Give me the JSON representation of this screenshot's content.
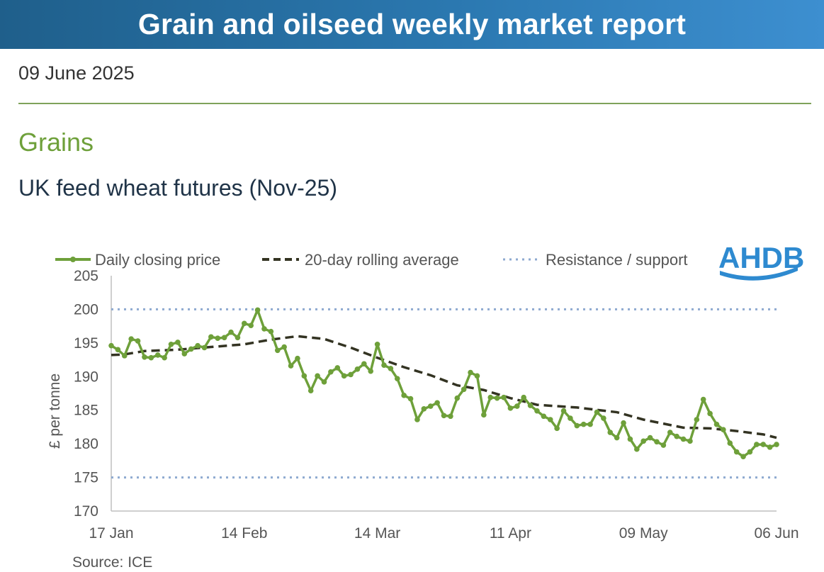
{
  "header": {
    "title": "Grain and oilseed weekly market report"
  },
  "report_date": "09 June 2025",
  "section_title": "Grains",
  "source": "Source: ICE",
  "logo": {
    "text": "AHDB",
    "color": "#2e8ad0"
  },
  "colors": {
    "price": "#6ea03a",
    "average": "#333322",
    "support": "#8eaad0",
    "banner": "#2b78b0"
  },
  "chart_data": {
    "type": "line",
    "title": "UK feed wheat futures (Nov-25)",
    "xlabel": "",
    "ylabel": "£ per tonne",
    "ylim": [
      170,
      205
    ],
    "yticks": [
      "170",
      "175",
      "180",
      "185",
      "190",
      "195",
      "200",
      "205"
    ],
    "xticks": [
      "17 Jan",
      "14 Feb",
      "14 Mar",
      "11 Apr",
      "09 May",
      "06 Jun"
    ],
    "legend": [
      "Daily closing price",
      "20-day rolling average",
      "Resistance / support"
    ],
    "legend_position": "top",
    "grid": false,
    "x_range": [
      0,
      100
    ],
    "series": [
      {
        "name": "Daily closing price",
        "x": [
          0,
          1,
          2,
          3,
          4,
          5,
          6,
          7,
          8,
          9,
          10,
          11,
          12,
          13,
          14,
          15,
          16,
          17,
          18,
          19,
          20,
          21,
          22,
          23,
          24,
          25,
          26,
          27,
          28,
          29,
          30,
          31,
          32,
          33,
          34,
          35,
          36,
          37,
          38,
          39,
          40,
          41,
          42,
          43,
          44,
          45,
          46,
          47,
          48,
          49,
          50,
          51,
          52,
          53,
          54,
          55,
          56,
          57,
          58,
          59,
          60,
          61,
          62,
          63,
          64,
          65,
          66,
          67,
          68,
          69,
          70,
          71,
          72,
          73,
          74,
          75,
          76,
          77,
          78,
          79,
          80,
          81,
          82,
          83,
          84,
          85,
          86,
          87,
          88,
          89,
          90,
          91,
          92,
          93,
          94,
          95,
          96,
          97,
          98,
          99,
          100
        ],
        "values": [
          194.6,
          194.0,
          193.1,
          195.6,
          195.3,
          192.9,
          192.8,
          193.2,
          192.8,
          194.8,
          195.1,
          193.4,
          194.1,
          194.6,
          194.3,
          195.9,
          195.7,
          195.8,
          196.6,
          195.8,
          197.9,
          197.6,
          199.9,
          197.1,
          196.7,
          193.9,
          194.4,
          191.6,
          192.7,
          190.1,
          187.9,
          190.1,
          189.2,
          190.7,
          191.3,
          190.1,
          190.3,
          191.1,
          191.9,
          190.8,
          194.8,
          191.7,
          191.2,
          189.7,
          187.2,
          186.7,
          183.6,
          185.2,
          185.6,
          186.1,
          184.2,
          184.1,
          186.8,
          188.1,
          190.6,
          190.1,
          184.3,
          186.9,
          186.8,
          186.9,
          185.3,
          185.6,
          186.9,
          185.7,
          184.9,
          184.1,
          183.6,
          182.3,
          184.9,
          183.8,
          182.7,
          182.9,
          182.9,
          184.7,
          183.8,
          181.7,
          180.9,
          183.1,
          180.7,
          179.2,
          180.4,
          180.9,
          180.3,
          179.8,
          181.7,
          181.1,
          180.7,
          180.4,
          183.6,
          186.6,
          184.5,
          182.9,
          182.1,
          180.1,
          178.8,
          178.1,
          178.8,
          179.9,
          179.9,
          179.5,
          179.9
        ]
      },
      {
        "name": "20-day rolling average",
        "x": [
          0,
          2,
          5,
          10,
          15,
          20,
          24,
          28,
          32,
          36,
          40,
          44,
          48,
          52,
          56,
          60,
          64,
          70,
          76,
          80,
          86,
          90,
          94,
          98,
          100
        ],
        "values": [
          193.2,
          193.3,
          193.8,
          194.0,
          194.4,
          194.8,
          195.5,
          196.0,
          195.6,
          194.3,
          192.8,
          191.4,
          190.2,
          188.7,
          188.0,
          186.8,
          185.8,
          185.4,
          184.7,
          183.6,
          182.4,
          182.3,
          181.9,
          181.4,
          180.9
        ]
      },
      {
        "name": "Resistance",
        "x": [
          0,
          100
        ],
        "values": [
          200,
          200
        ]
      },
      {
        "name": "Support",
        "x": [
          0,
          100
        ],
        "values": [
          175,
          175
        ]
      }
    ]
  }
}
